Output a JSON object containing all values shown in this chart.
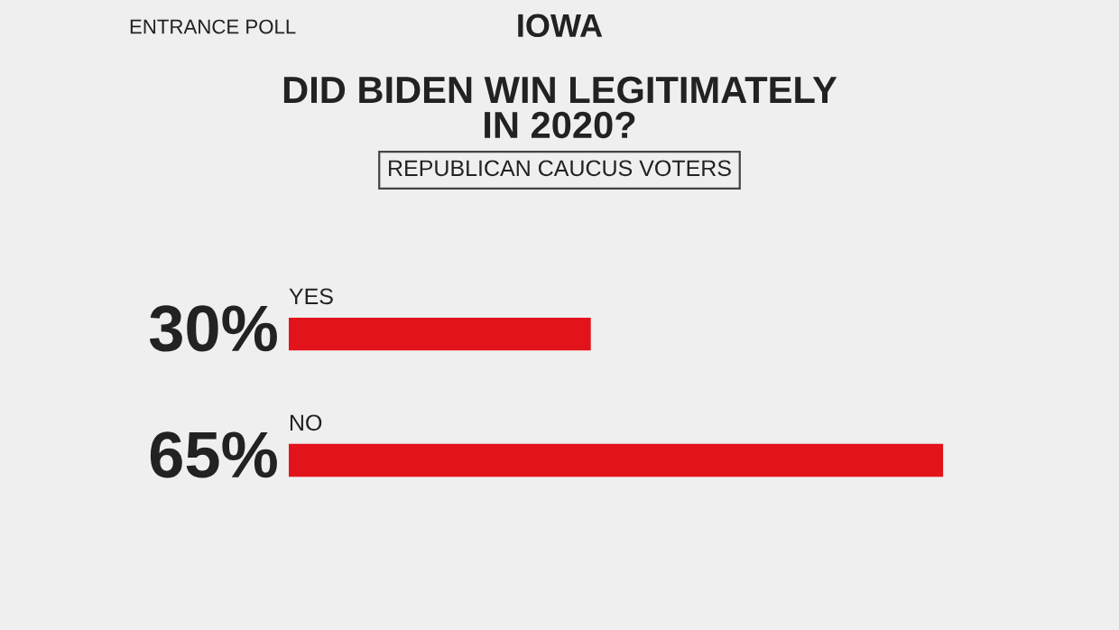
{
  "chart_data": {
    "type": "bar",
    "orientation": "horizontal",
    "title": "DID BIDEN WIN LEGITIMATELY\nIN 2020?",
    "subtitle": "REPUBLICAN CAUCUS VOTERS",
    "annotations": [
      "ENTRANCE POLL",
      "IOWA"
    ],
    "categories": [
      "YES",
      "NO"
    ],
    "values": [
      30,
      65
    ],
    "value_labels": [
      "30%",
      "65%"
    ],
    "color": "#e3131b"
  }
}
